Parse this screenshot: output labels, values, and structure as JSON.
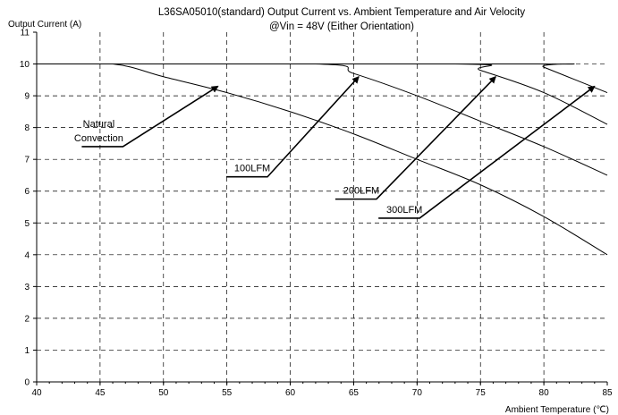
{
  "chart_data": {
    "type": "line",
    "title": "L36SA05010(standard)  Output Current vs. Ambient Temperature and Air Velocity",
    "subtitle": "@Vin = 48V (Either Orientation)",
    "xlabel": "Ambient Temperature (℃)",
    "ylabel": "Output Current (A)",
    "xlim": [
      40,
      85
    ],
    "ylim": [
      0,
      11
    ],
    "x_ticks": [
      "40",
      "45",
      "50",
      "55",
      "60",
      "65",
      "70",
      "75",
      "80",
      "85"
    ],
    "y_ticks": [
      "0",
      "1",
      "2",
      "3",
      "4",
      "5",
      "6",
      "7",
      "8",
      "9",
      "10",
      "11"
    ],
    "grid": true,
    "series": [
      {
        "name": "Natural Convection",
        "x": [
          40,
          46,
          50,
          55,
          60,
          65,
          70,
          75,
          80,
          85
        ],
        "y": [
          10,
          10,
          9.6,
          9.1,
          8.5,
          7.8,
          7.0,
          6.2,
          5.2,
          4.0
        ]
      },
      {
        "name": "100LFM",
        "x": [
          40,
          62,
          65,
          70,
          75,
          80,
          85
        ],
        "y": [
          10,
          10,
          9.7,
          9.0,
          8.2,
          7.4,
          6.5
        ]
      },
      {
        "name": "200LFM",
        "x": [
          40,
          73,
          75,
          80,
          85
        ],
        "y": [
          10,
          10,
          9.8,
          9.1,
          8.1
        ]
      },
      {
        "name": "300LFM",
        "x": [
          40,
          79.5,
          80,
          85
        ],
        "y": [
          10,
          10,
          9.9,
          9.1
        ]
      }
    ],
    "annotations": [
      {
        "text_lines": [
          "Natural",
          "Convection"
        ],
        "label_x": 46.8,
        "label_y": 7.4,
        "arrow_to_x": 54.3,
        "arrow_to_y": 9.3
      },
      {
        "text_lines": [
          "100LFM"
        ],
        "label_x": 58.2,
        "label_y": 6.45,
        "arrow_to_x": 65.4,
        "arrow_to_y": 9.6
      },
      {
        "text_lines": [
          "200LFM"
        ],
        "label_x": 66.8,
        "label_y": 5.75,
        "arrow_to_x": 76.2,
        "arrow_to_y": 9.6
      },
      {
        "text_lines": [
          "300LFM"
        ],
        "label_x": 70.2,
        "label_y": 5.15,
        "arrow_to_x": 84.0,
        "arrow_to_y": 9.3
      }
    ]
  }
}
